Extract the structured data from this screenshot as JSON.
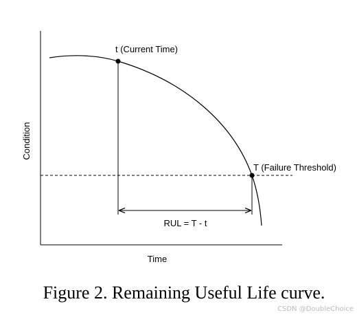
{
  "diagram": {
    "y_label": "Condition",
    "x_label": "Time",
    "current_time_label": "t (Current Time)",
    "failure_label": "T (Failure Threshold)",
    "rul_label": "RUL = T - t"
  },
  "caption": "Figure 2. Remaining Useful Life curve.",
  "watermark": "CSDN @DoubleChoice"
}
